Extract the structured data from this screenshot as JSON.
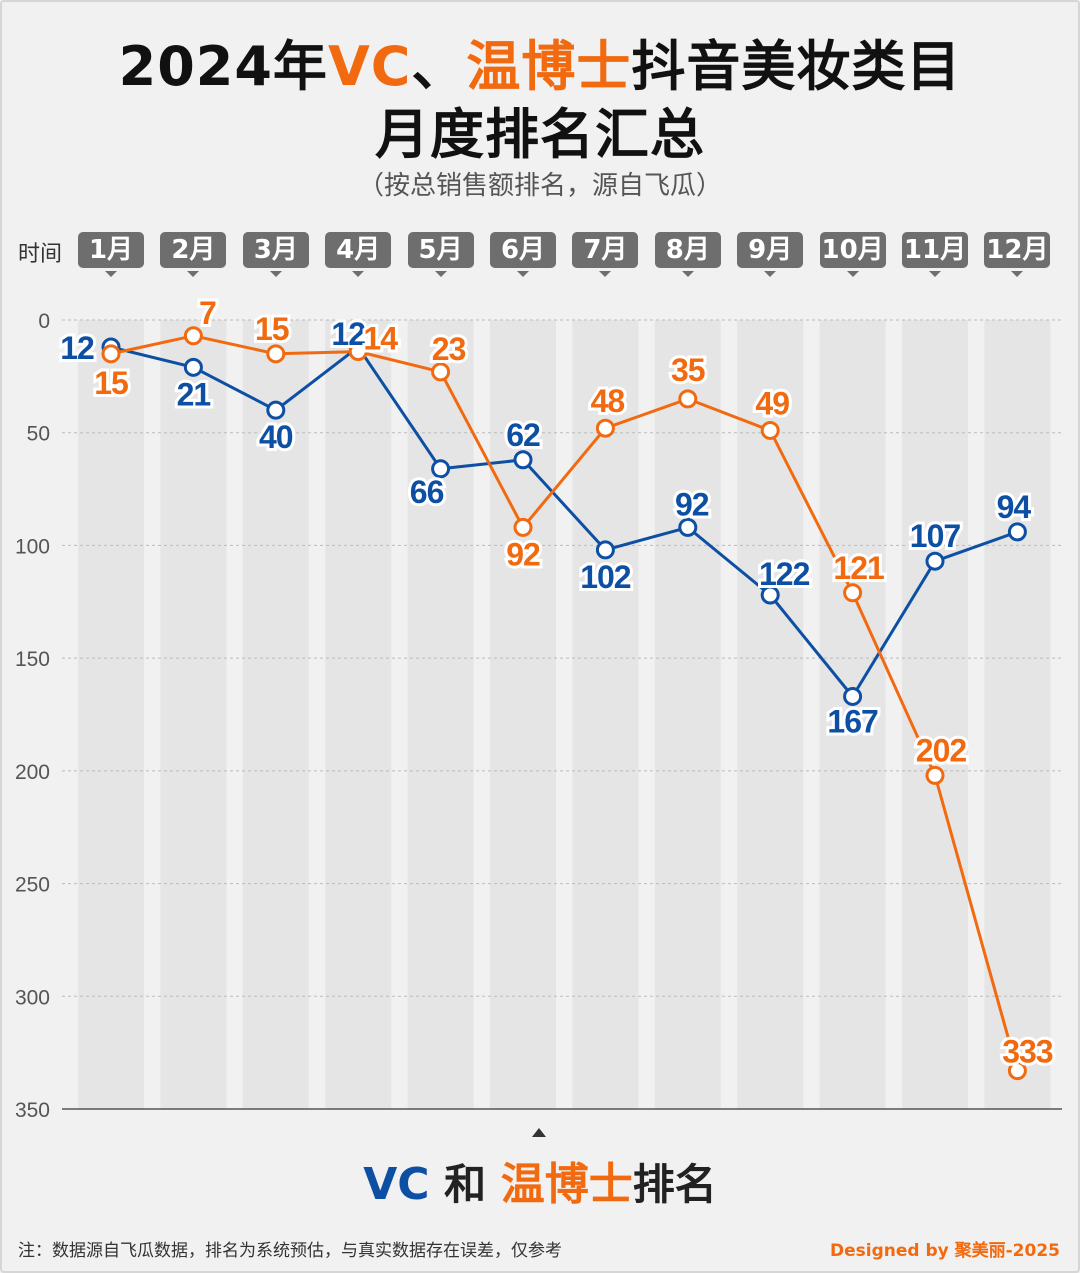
{
  "title": {
    "year_prefix": "2024年",
    "brand_vc": "VC",
    "separator": "、",
    "brand_wbs": "温博士",
    "line1_rest": "抖音美妆类目",
    "line2": "月度排名汇总"
  },
  "subtitle": "（按总销售额排名，源自飞瓜）",
  "time_label": "时间",
  "legend": {
    "vc": "VC",
    "and": "和",
    "wbs": "温博士",
    "suffix": "排名"
  },
  "footer": {
    "note": "注：数据源自飞瓜数据，排名为系统预估，与真实数据存在误差，仅参考",
    "credit": "Designed by 聚美丽-2025"
  },
  "colors": {
    "vc": "#0d4fa3",
    "wbs": "#f26a10",
    "month_tag": "#6e6e6e",
    "band": "#e5e5e5"
  },
  "chart_data": {
    "type": "line",
    "categories": [
      "1月",
      "2月",
      "3月",
      "4月",
      "5月",
      "6月",
      "7月",
      "8月",
      "9月",
      "10月",
      "11月",
      "12月"
    ],
    "series": [
      {
        "name": "VC",
        "color": "#0d4fa3",
        "values": [
          12,
          21,
          40,
          12,
          66,
          62,
          102,
          92,
          122,
          167,
          107,
          94
        ]
      },
      {
        "name": "温博士",
        "color": "#f26a10",
        "values": [
          15,
          7,
          15,
          14,
          23,
          92,
          48,
          35,
          49,
          121,
          202,
          333
        ]
      }
    ],
    "y_ticks": [
      0,
      50,
      100,
      150,
      200,
      250,
      300,
      350
    ],
    "ylim": [
      0,
      350
    ],
    "y_inverted": true,
    "grid": true,
    "legend_position": "bottom"
  }
}
